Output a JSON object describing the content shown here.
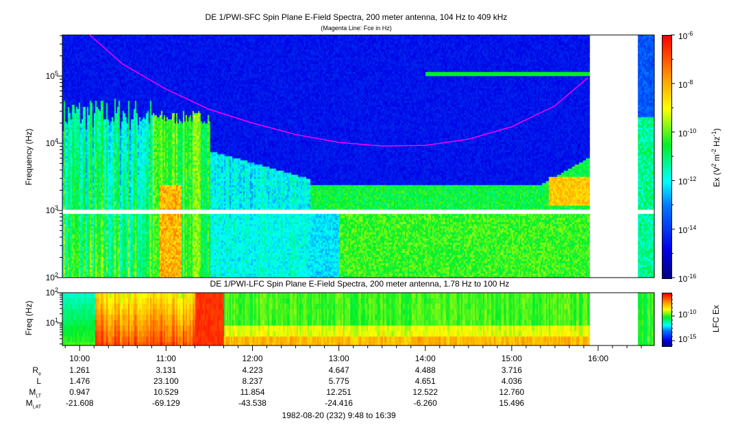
{
  "chart_data": [
    {
      "type": "heatmap",
      "title": "DE 1/PWI-SFC  Spin Plane E-Field Spectra, 200 meter antenna, 104 Hz to 409 kHz",
      "subtitle": "(Magenta Line: Fce in Hz)",
      "ylabel": "Frequency (Hz)",
      "yscale": "log",
      "ylim": [
        100,
        409000
      ],
      "yticks": [
        "10^2",
        "10^3",
        "10^4",
        "10^5"
      ],
      "xlim": [
        "09:48",
        "16:39"
      ],
      "xticks": [
        "10:00",
        "11:00",
        "12:00",
        "13:00",
        "14:00",
        "15:00",
        "16:00"
      ],
      "colorbar": {
        "label": "Ex (V^2 m^-2 Hz^-1)",
        "scale": "log",
        "range": [
          1e-16,
          1e-06
        ],
        "ticks": [
          "10^-6",
          "10^-8",
          "10^-10",
          "10^-12",
          "10^-14",
          "10^-16"
        ],
        "colormap": "jet"
      },
      "data_gaps": [
        {
          "time": [
            "15:54",
            "16:27"
          ]
        },
        {
          "freq_hz": [
            900,
            1050
          ]
        }
      ],
      "fce_line": {
        "color": "#ff00ff",
        "time": [
          "10:07",
          "10:30",
          "11:00",
          "11:30",
          "12:00",
          "12:30",
          "13:00",
          "13:30",
          "14:00",
          "14:30",
          "15:00",
          "15:30",
          "15:53"
        ],
        "freq_hz": [
          409000,
          150000,
          64000,
          32000,
          20000,
          13500,
          10300,
          9100,
          9300,
          11500,
          17600,
          36000,
          95000
        ]
      }
    },
    {
      "type": "heatmap",
      "title": "DE 1/PWI-LFC  Spin Plane E-Field Spectra, 200 meter antenna, 1.78 Hz to 100 Hz",
      "ylabel": "Freq (Hz)",
      "yscale": "log",
      "ylim": [
        1.78,
        100
      ],
      "yticks": [
        "10^1",
        "10^2"
      ],
      "xlim": [
        "09:48",
        "16:39"
      ],
      "colorbar": {
        "label": "LFC Ex",
        "scale": "log",
        "ticks": [
          "10^-10",
          "10^-15"
        ],
        "colormap": "jet"
      },
      "data_gaps": [
        {
          "time": [
            "15:54",
            "16:27"
          ]
        }
      ]
    }
  ],
  "ephemeris": {
    "times": [
      "10:00",
      "11:00",
      "12:00",
      "13:00",
      "14:00",
      "15:00",
      "16:00"
    ],
    "rows": [
      {
        "label": "R",
        "sub": "e",
        "values": [
          "1.261",
          "3.131",
          "4.223",
          "4.647",
          "4.488",
          "3.716"
        ]
      },
      {
        "label": "L",
        "sub": "",
        "values": [
          "1.476",
          "23.100",
          "8.237",
          "5.775",
          "4.651",
          "4.036"
        ]
      },
      {
        "label": "M",
        "sub": "LT",
        "values": [
          "0.947",
          "10.529",
          "11.854",
          "12.251",
          "12.522",
          "12.760"
        ]
      },
      {
        "label": "M",
        "sub": "LAT",
        "values": [
          "-21.608",
          "-69.129",
          "-43.538",
          "-24.416",
          "-6.260",
          "15.496"
        ]
      }
    ],
    "date_range": "1982-08-20 (232) 9:48 to 16:39"
  }
}
